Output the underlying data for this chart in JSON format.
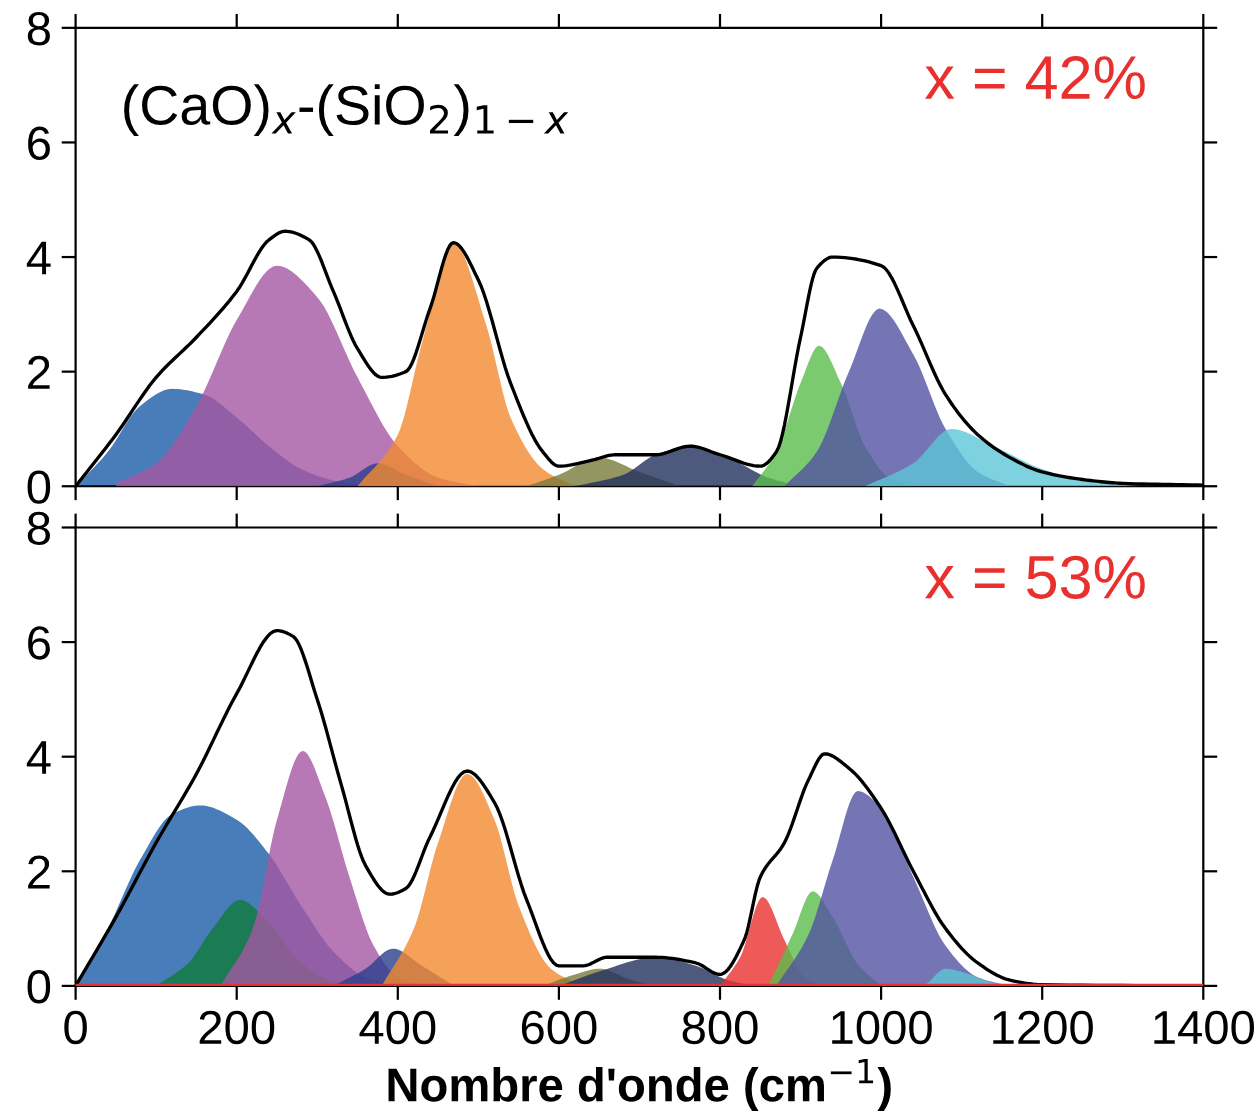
{
  "chart_data": [
    {
      "type": "area",
      "xlim": [
        0,
        1400
      ],
      "ylim": [
        0,
        8
      ],
      "xticks": [
        0,
        200,
        400,
        600,
        800,
        1000,
        1200,
        1400
      ],
      "yticks": [
        0,
        2,
        4,
        6,
        8
      ],
      "tick_labels": "y",
      "grid": false,
      "legend": false,
      "annotations": [
        "(CaO)$_{x}$-(SiO$_{2}$)$_{1−x}$",
        "x = 42%"
      ],
      "series": [
        {
          "color": "#1a5ca8",
          "x": [
            0,
            40,
            80,
            120,
            160,
            200,
            240,
            280,
            320,
            360
          ],
          "values": [
            0,
            0.6,
            1.4,
            1.7,
            1.6,
            1.2,
            0.7,
            0.3,
            0.1,
            0
          ]
        },
        {
          "color": "#a557a3",
          "x": [
            50,
            100,
            150,
            200,
            250,
            300,
            350,
            400,
            450,
            500
          ],
          "values": [
            0.05,
            0.4,
            1.4,
            2.9,
            3.85,
            3.3,
            1.9,
            0.7,
            0.15,
            0
          ]
        },
        {
          "color": "#2a3f8c",
          "x": [
            300,
            340,
            375,
            410,
            450
          ],
          "values": [
            0,
            0.15,
            0.4,
            0.2,
            0
          ]
        },
        {
          "color": "#f28a30",
          "x": [
            350,
            400,
            430,
            469,
            510,
            540,
            580,
            620
          ],
          "values": [
            0,
            0.9,
            2.5,
            4.25,
            2.8,
            1.2,
            0.3,
            0
          ]
        },
        {
          "color": "#7a7a3a",
          "x": [
            560,
            600,
            650,
            700,
            750
          ],
          "values": [
            0,
            0.2,
            0.5,
            0.25,
            0
          ]
        },
        {
          "color": "#22305e",
          "x": [
            620,
            680,
            720,
            763,
            810,
            860,
            900
          ],
          "values": [
            0,
            0.2,
            0.55,
            0.7,
            0.5,
            0.15,
            0
          ]
        },
        {
          "color": "#5bbd4b",
          "x": [
            840,
            870,
            900,
            923,
            950,
            980,
            1010,
            1040
          ],
          "values": [
            0,
            0.6,
            1.8,
            2.45,
            1.8,
            0.7,
            0.15,
            0
          ]
        },
        {
          "color": "#5252a3",
          "x": [
            880,
            920,
            960,
            998,
            1040,
            1080,
            1120,
            1160
          ],
          "values": [
            0,
            0.6,
            2.0,
            3.1,
            2.3,
            1.0,
            0.25,
            0
          ]
        },
        {
          "color": "#5ec6d6",
          "x": [
            980,
            1040,
            1087,
            1140,
            1200,
            1260,
            1320
          ],
          "values": [
            0,
            0.4,
            1.0,
            0.7,
            0.3,
            0.08,
            0
          ]
        },
        {
          "type": "line",
          "color": "#000000",
          "x": [
            0,
            50,
            100,
            150,
            200,
            240,
            260,
            290,
            320,
            350,
            380,
            410,
            440,
            469,
            500,
            540,
            580,
            600,
            640,
            670,
            720,
            763,
            800,
            850,
            870,
            900,
            920,
            940,
            1000,
            1040,
            1080,
            1120,
            1160,
            1200,
            1260,
            1300,
            1400
          ],
          "values": [
            0,
            0.9,
            1.9,
            2.6,
            3.4,
            4.3,
            4.45,
            4.3,
            3.4,
            2.4,
            1.9,
            2.0,
            3.1,
            4.25,
            3.6,
            1.8,
            0.6,
            0.35,
            0.45,
            0.55,
            0.55,
            0.7,
            0.55,
            0.35,
            0.6,
            2.6,
            3.8,
            4.0,
            3.85,
            2.8,
            1.6,
            0.9,
            0.5,
            0.25,
            0.1,
            0.05,
            0.02
          ]
        }
      ]
    },
    {
      "type": "area",
      "xlim": [
        0,
        1400
      ],
      "ylim": [
        0,
        8
      ],
      "xticks": [
        0,
        200,
        400,
        600,
        800,
        1000,
        1200,
        1400
      ],
      "yticks": [
        0,
        2,
        4,
        6,
        8
      ],
      "grid": false,
      "legend": false,
      "xlabel": "Nombre d'onde (cm$^{−1}$)",
      "annotations": [
        "x = 53%"
      ],
      "ref_lines": [
        {
          "axis": "y",
          "value": 0,
          "color": "#e8312e"
        }
      ],
      "series": [
        {
          "color": "#1a5ca8",
          "x": [
            0,
            40,
            80,
            120,
            155,
            200,
            240,
            280,
            320,
            360,
            400
          ],
          "values": [
            0,
            1.0,
            2.2,
            3.0,
            3.15,
            2.9,
            2.3,
            1.4,
            0.6,
            0.15,
            0
          ]
        },
        {
          "color": "#0f7a3b",
          "x": [
            100,
            140,
            170,
            204,
            240,
            280,
            320,
            350
          ],
          "values": [
            0,
            0.4,
            1.0,
            1.5,
            1.1,
            0.4,
            0.08,
            0
          ]
        },
        {
          "color": "#a557a3",
          "x": [
            180,
            220,
            250,
            282,
            310,
            340,
            370,
            400,
            430
          ],
          "values": [
            0,
            1.0,
            2.9,
            4.1,
            3.3,
            1.9,
            0.7,
            0.15,
            0
          ]
        },
        {
          "color": "#2a3f8c",
          "x": [
            320,
            360,
            394,
            430,
            470
          ],
          "values": [
            0,
            0.3,
            0.65,
            0.35,
            0
          ]
        },
        {
          "color": "#f28a30",
          "x": [
            380,
            420,
            450,
            486,
            520,
            550,
            590,
            630
          ],
          "values": [
            0,
            1.0,
            2.5,
            3.7,
            2.9,
            1.4,
            0.3,
            0
          ]
        },
        {
          "color": "#7a7a3a",
          "x": [
            580,
            620,
            650,
            690,
            720
          ],
          "values": [
            0,
            0.2,
            0.3,
            0.1,
            0
          ]
        },
        {
          "color": "#22305e",
          "x": [
            600,
            650,
            720,
            770,
            810,
            840
          ],
          "values": [
            0,
            0.25,
            0.5,
            0.35,
            0.1,
            0
          ]
        },
        {
          "color": "#e8312e",
          "x": [
            800,
            825,
            853,
            880,
            905,
            930
          ],
          "values": [
            0,
            0.5,
            1.55,
            0.8,
            0.15,
            0
          ]
        },
        {
          "color": "#5bbd4b",
          "x": [
            860,
            890,
            915,
            940,
            970,
            1000
          ],
          "values": [
            0,
            0.9,
            1.65,
            1.2,
            0.4,
            0
          ]
        },
        {
          "color": "#5252a3",
          "x": [
            870,
            910,
            940,
            971,
            1000,
            1040,
            1080,
            1120,
            1160
          ],
          "values": [
            0,
            0.9,
            2.2,
            3.4,
            3.1,
            1.9,
            0.7,
            0.15,
            0
          ]
        },
        {
          "color": "#5ec6d6",
          "x": [
            1050,
            1080,
            1110,
            1140,
            1170
          ],
          "values": [
            0,
            0.3,
            0.2,
            0.05,
            0
          ]
        },
        {
          "type": "line",
          "color": "#000000",
          "x": [
            0,
            50,
            100,
            150,
            200,
            250,
            270,
            300,
            330,
            360,
            390,
            410,
            440,
            486,
            520,
            560,
            600,
            630,
            660,
            720,
            770,
            800,
            830,
            850,
            880,
            910,
            930,
            960,
            1000,
            1040,
            1080,
            1120,
            1160,
            1200,
            1400
          ],
          "values": [
            0,
            1.2,
            2.5,
            3.7,
            5.1,
            6.2,
            6.1,
            5.0,
            3.5,
            2.1,
            1.6,
            1.7,
            2.6,
            3.75,
            3.2,
            1.5,
            0.35,
            0.35,
            0.5,
            0.5,
            0.4,
            0.2,
            0.8,
            1.9,
            2.5,
            3.6,
            4.05,
            3.8,
            3.1,
            2.0,
            1.0,
            0.4,
            0.1,
            0.02,
            0
          ]
        }
      ]
    }
  ]
}
